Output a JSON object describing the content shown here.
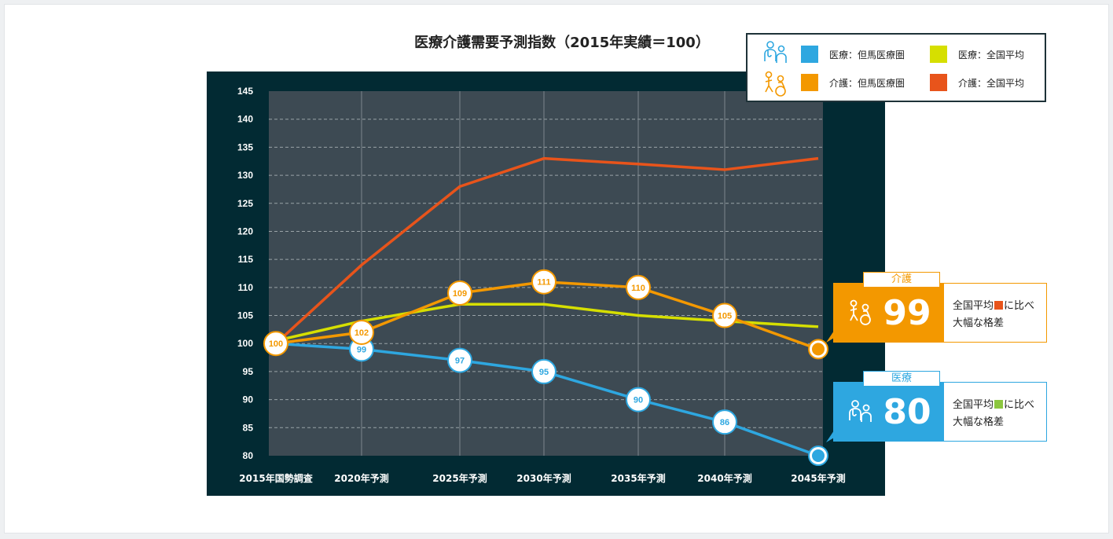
{
  "chart_data": {
    "type": "line",
    "title": "医療介護需要予測指数（2015年実績＝100）",
    "categories": [
      "2015年国勢調査",
      "2020年予測",
      "2025年予測",
      "2030年予測",
      "2035年予測",
      "2040年予測",
      "2045年予測"
    ],
    "yticks": [
      145,
      140,
      135,
      130,
      125,
      120,
      115,
      110,
      105,
      100,
      95,
      90,
      85,
      80
    ],
    "ylim": [
      80,
      145
    ],
    "grid": true,
    "series": [
      {
        "name": "医療：但馬医療圏",
        "color": "#2ea7e0",
        "values": [
          100,
          99,
          97,
          95,
          90,
          86,
          80
        ],
        "labels": [
          "",
          "99",
          "97",
          "95",
          "90",
          "86",
          ""
        ]
      },
      {
        "name": "医療：全国平均",
        "color": "#d6df00",
        "values": [
          100.5,
          104,
          107,
          107,
          105,
          104,
          103
        ],
        "labels": []
      },
      {
        "name": "介護：但馬医療圏",
        "color": "#f39800",
        "values": [
          100,
          102,
          109,
          111,
          110,
          105,
          99
        ],
        "labels": [
          "100",
          "102",
          "109",
          "111",
          "110",
          "105",
          ""
        ]
      },
      {
        "name": "介護：全国平均",
        "color": "#e8541b",
        "values": [
          100,
          114,
          128,
          133,
          132,
          131,
          133
        ],
        "labels": []
      }
    ]
  },
  "legend": {
    "items": [
      "医療：但馬医療圏",
      "医療：全国平均",
      "介護：但馬医療圏",
      "介護：全国平均"
    ]
  },
  "callouts": {
    "care": {
      "tag": "介護",
      "value": "99",
      "line1": "全国平均",
      "line1b": "に比べ",
      "line2": "大幅な格差",
      "color": "#f39800",
      "sq": "#e8541b"
    },
    "medical": {
      "tag": "医療",
      "value": "80",
      "line1": "全国平均",
      "line1b": "に比べ",
      "line2": "大幅な格差",
      "color": "#2ea7e0",
      "sq": "#8cc63f"
    }
  }
}
